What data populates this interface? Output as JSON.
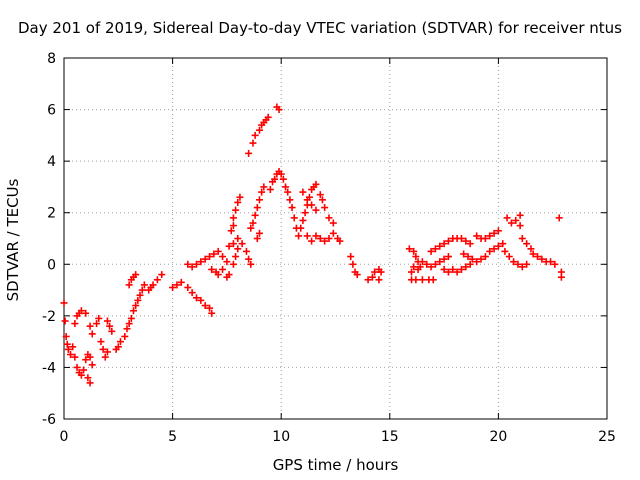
{
  "chart_data": {
    "type": "scatter",
    "title": "Day 201 of 2019, Sidereal Day-to-day VTEC variation (SDTVAR) for receiver ntus",
    "xlabel": "GPS time / hours",
    "ylabel": "SDTVAR / TECUs",
    "xlim": [
      0,
      25
    ],
    "ylim": [
      -6,
      8
    ],
    "xticks": [
      "0",
      "5",
      "10",
      "15",
      "20",
      "25"
    ],
    "yticks": [
      "-6",
      "-4",
      "-2",
      "0",
      "2",
      "4",
      "6",
      "8"
    ],
    "grid": true,
    "marker": "+",
    "color": "#ff0000",
    "series": [
      {
        "name": "SDTVAR",
        "points": [
          [
            0.0,
            -1.5
          ],
          [
            0.05,
            -2.2
          ],
          [
            0.1,
            -2.8
          ],
          [
            0.15,
            -3.1
          ],
          [
            0.2,
            -3.3
          ],
          [
            0.3,
            -3.5
          ],
          [
            0.4,
            -3.2
          ],
          [
            0.5,
            -2.3
          ],
          [
            0.6,
            -2.0
          ],
          [
            0.7,
            -1.9
          ],
          [
            0.5,
            -3.6
          ],
          [
            0.6,
            -4.0
          ],
          [
            0.7,
            -4.2
          ],
          [
            0.8,
            -4.3
          ],
          [
            0.9,
            -4.1
          ],
          [
            1.0,
            -3.7
          ],
          [
            1.1,
            -3.5
          ],
          [
            1.2,
            -3.6
          ],
          [
            1.3,
            -3.9
          ],
          [
            1.1,
            -4.4
          ],
          [
            1.2,
            -4.6
          ],
          [
            0.8,
            -1.8
          ],
          [
            1.0,
            -1.9
          ],
          [
            1.2,
            -2.4
          ],
          [
            1.3,
            -2.7
          ],
          [
            1.5,
            -2.3
          ],
          [
            1.6,
            -2.1
          ],
          [
            1.7,
            -3.0
          ],
          [
            1.8,
            -3.3
          ],
          [
            1.9,
            -3.6
          ],
          [
            2.0,
            -3.4
          ],
          [
            2.0,
            -2.2
          ],
          [
            2.1,
            -2.4
          ],
          [
            2.2,
            -2.6
          ],
          [
            2.4,
            -3.3
          ],
          [
            2.5,
            -3.2
          ],
          [
            2.6,
            -3.0
          ],
          [
            2.8,
            -2.8
          ],
          [
            2.9,
            -2.5
          ],
          [
            3.0,
            -2.3
          ],
          [
            3.1,
            -2.1
          ],
          [
            3.2,
            -1.8
          ],
          [
            3.3,
            -1.6
          ],
          [
            3.4,
            -1.4
          ],
          [
            3.5,
            -1.2
          ],
          [
            3.6,
            -1.0
          ],
          [
            3.7,
            -0.8
          ],
          [
            3.9,
            -1.0
          ],
          [
            4.0,
            -0.9
          ],
          [
            4.1,
            -0.8
          ],
          [
            4.3,
            -0.6
          ],
          [
            4.5,
            -0.4
          ],
          [
            3.0,
            -0.8
          ],
          [
            3.2,
            -0.5
          ],
          [
            3.3,
            -0.4
          ],
          [
            3.1,
            -0.6
          ],
          [
            5.0,
            -0.9
          ],
          [
            5.2,
            -0.8
          ],
          [
            5.4,
            -0.7
          ],
          [
            5.7,
            -0.9
          ],
          [
            5.9,
            -1.1
          ],
          [
            6.1,
            -1.3
          ],
          [
            6.3,
            -1.4
          ],
          [
            6.5,
            -1.6
          ],
          [
            6.7,
            -1.7
          ],
          [
            6.8,
            -1.9
          ],
          [
            5.7,
            0.0
          ],
          [
            5.9,
            -0.1
          ],
          [
            6.1,
            0.0
          ],
          [
            6.3,
            0.1
          ],
          [
            6.5,
            0.2
          ],
          [
            6.7,
            0.3
          ],
          [
            6.9,
            0.4
          ],
          [
            7.1,
            0.5
          ],
          [
            7.3,
            0.3
          ],
          [
            7.5,
            0.1
          ],
          [
            6.8,
            -0.2
          ],
          [
            7.0,
            -0.3
          ],
          [
            7.1,
            -0.4
          ],
          [
            7.3,
            -0.2
          ],
          [
            7.5,
            -0.5
          ],
          [
            7.6,
            -0.4
          ],
          [
            7.8,
            0.0
          ],
          [
            7.9,
            0.3
          ],
          [
            8.0,
            0.6
          ],
          [
            7.7,
            1.3
          ],
          [
            7.8,
            1.5
          ],
          [
            7.8,
            1.8
          ],
          [
            7.9,
            2.1
          ],
          [
            8.0,
            2.4
          ],
          [
            8.1,
            2.6
          ],
          [
            7.6,
            0.7
          ],
          [
            7.8,
            0.8
          ],
          [
            8.0,
            1.0
          ],
          [
            8.2,
            0.8
          ],
          [
            8.4,
            0.5
          ],
          [
            8.5,
            0.2
          ],
          [
            8.6,
            0.0
          ],
          [
            8.6,
            1.4
          ],
          [
            8.7,
            1.6
          ],
          [
            8.8,
            1.9
          ],
          [
            8.9,
            2.2
          ],
          [
            9.0,
            2.5
          ],
          [
            9.1,
            2.8
          ],
          [
            9.2,
            3.0
          ],
          [
            8.9,
            1.0
          ],
          [
            9.0,
            1.2
          ],
          [
            8.5,
            4.3
          ],
          [
            8.7,
            4.7
          ],
          [
            8.8,
            5.0
          ],
          [
            9.0,
            5.2
          ],
          [
            9.1,
            5.4
          ],
          [
            9.2,
            5.5
          ],
          [
            9.3,
            5.6
          ],
          [
            9.4,
            5.7
          ],
          [
            9.5,
            2.9
          ],
          [
            9.6,
            3.2
          ],
          [
            9.7,
            3.3
          ],
          [
            9.8,
            3.5
          ],
          [
            9.9,
            3.6
          ],
          [
            10.0,
            3.5
          ],
          [
            10.1,
            3.3
          ],
          [
            10.2,
            3.0
          ],
          [
            9.8,
            6.1
          ],
          [
            9.9,
            6.0
          ],
          [
            10.3,
            2.8
          ],
          [
            10.4,
            2.5
          ],
          [
            10.5,
            2.2
          ],
          [
            10.6,
            1.8
          ],
          [
            10.7,
            1.4
          ],
          [
            10.8,
            1.1
          ],
          [
            10.9,
            1.4
          ],
          [
            11.0,
            1.7
          ],
          [
            11.1,
            2.0
          ],
          [
            11.2,
            2.3
          ],
          [
            11.3,
            2.6
          ],
          [
            11.4,
            2.9
          ],
          [
            11.5,
            3.0
          ],
          [
            11.6,
            3.1
          ],
          [
            11.8,
            2.7
          ],
          [
            11.9,
            2.5
          ],
          [
            12.0,
            2.2
          ],
          [
            12.2,
            1.8
          ],
          [
            12.4,
            1.6
          ],
          [
            11.0,
            2.8
          ],
          [
            11.2,
            2.5
          ],
          [
            11.4,
            2.3
          ],
          [
            11.6,
            2.1
          ],
          [
            11.2,
            1.1
          ],
          [
            11.4,
            0.9
          ],
          [
            11.6,
            1.1
          ],
          [
            11.8,
            1.0
          ],
          [
            12.0,
            0.9
          ],
          [
            12.2,
            1.0
          ],
          [
            12.4,
            1.2
          ],
          [
            12.6,
            1.0
          ],
          [
            12.7,
            0.9
          ],
          [
            13.2,
            0.3
          ],
          [
            13.3,
            0.0
          ],
          [
            13.4,
            -0.3
          ],
          [
            13.5,
            -0.4
          ],
          [
            14.0,
            -0.6
          ],
          [
            14.2,
            -0.5
          ],
          [
            14.3,
            -0.3
          ],
          [
            14.5,
            -0.2
          ],
          [
            14.6,
            -0.3
          ],
          [
            14.5,
            -0.6
          ],
          [
            15.9,
            0.6
          ],
          [
            16.1,
            0.5
          ],
          [
            16.2,
            0.3
          ],
          [
            16.3,
            0.1
          ],
          [
            16.4,
            -0.1
          ],
          [
            16.3,
            -0.2
          ],
          [
            16.1,
            -0.1
          ],
          [
            16.0,
            -0.3
          ],
          [
            16.0,
            -0.6
          ],
          [
            16.2,
            -0.6
          ],
          [
            16.5,
            -0.6
          ],
          [
            16.8,
            -0.6
          ],
          [
            17.0,
            -0.6
          ],
          [
            16.5,
            0.1
          ],
          [
            16.7,
            0.0
          ],
          [
            16.9,
            -0.1
          ],
          [
            17.1,
            0.0
          ],
          [
            17.3,
            0.1
          ],
          [
            17.5,
            0.2
          ],
          [
            17.7,
            0.3
          ],
          [
            16.9,
            0.5
          ],
          [
            17.1,
            0.6
          ],
          [
            17.3,
            0.7
          ],
          [
            17.5,
            0.8
          ],
          [
            17.7,
            0.9
          ],
          [
            17.9,
            1.0
          ],
          [
            18.1,
            1.0
          ],
          [
            18.3,
            1.0
          ],
          [
            18.5,
            0.9
          ],
          [
            18.7,
            0.8
          ],
          [
            17.5,
            -0.2
          ],
          [
            17.7,
            -0.3
          ],
          [
            17.9,
            -0.2
          ],
          [
            18.1,
            -0.3
          ],
          [
            18.3,
            -0.2
          ],
          [
            18.5,
            -0.1
          ],
          [
            18.7,
            0.0
          ],
          [
            18.4,
            0.4
          ],
          [
            18.6,
            0.3
          ],
          [
            18.8,
            0.2
          ],
          [
            19.0,
            0.1
          ],
          [
            19.2,
            0.2
          ],
          [
            19.4,
            0.3
          ],
          [
            19.6,
            0.5
          ],
          [
            19.8,
            0.6
          ],
          [
            20.0,
            0.7
          ],
          [
            19.0,
            1.1
          ],
          [
            19.2,
            1.0
          ],
          [
            19.4,
            1.0
          ],
          [
            19.6,
            1.1
          ],
          [
            19.8,
            1.2
          ],
          [
            20.0,
            1.3
          ],
          [
            20.4,
            1.8
          ],
          [
            20.6,
            1.6
          ],
          [
            20.8,
            1.7
          ],
          [
            21.0,
            1.5
          ],
          [
            20.2,
            0.8
          ],
          [
            20.3,
            0.5
          ],
          [
            20.5,
            0.3
          ],
          [
            20.7,
            0.1
          ],
          [
            20.9,
            0.0
          ],
          [
            21.1,
            -0.1
          ],
          [
            21.3,
            0.0
          ],
          [
            21.1,
            1.0
          ],
          [
            21.3,
            0.8
          ],
          [
            21.5,
            0.6
          ],
          [
            21.6,
            0.4
          ],
          [
            21.8,
            0.3
          ],
          [
            22.0,
            0.2
          ],
          [
            22.2,
            0.1
          ],
          [
            22.4,
            0.1
          ],
          [
            22.6,
            0.0
          ],
          [
            21.0,
            1.9
          ],
          [
            22.8,
            1.8
          ],
          [
            22.9,
            -0.3
          ],
          [
            22.9,
            -0.5
          ]
        ]
      }
    ]
  }
}
